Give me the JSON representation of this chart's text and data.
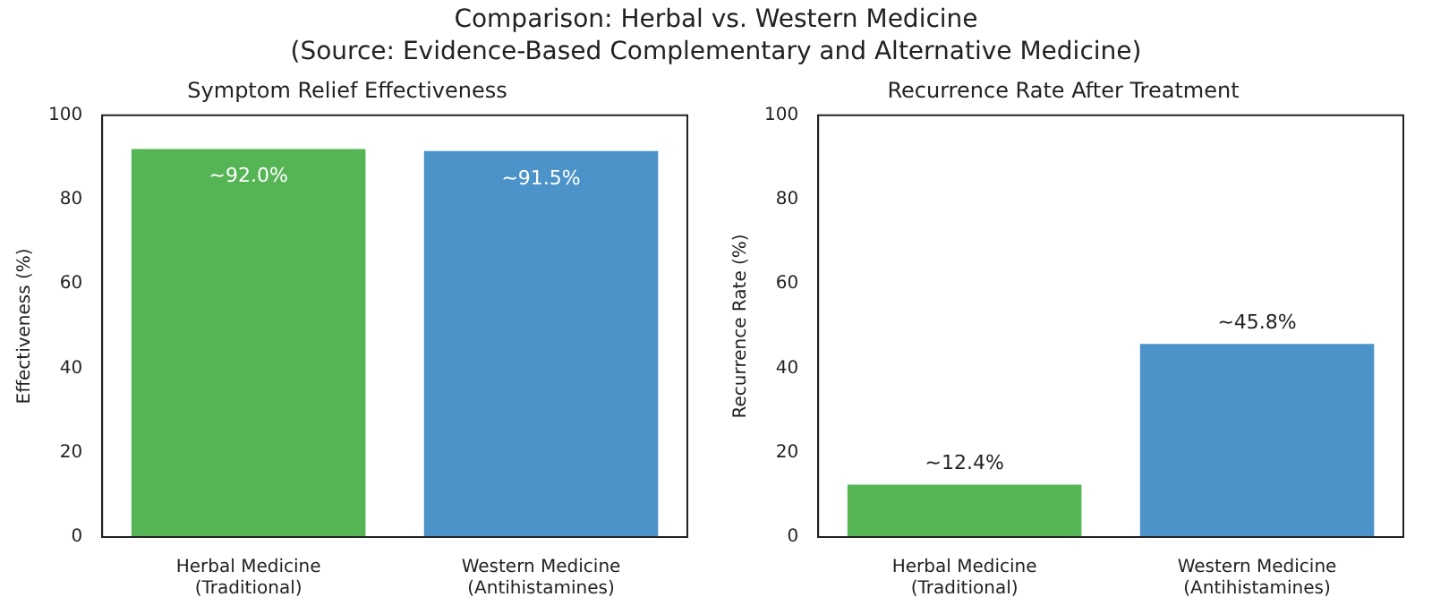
{
  "chart_data": [
    {
      "type": "bar",
      "title": "Symptom Relief Effectiveness",
      "ylabel": "Effectiveness (%)",
      "annotations": [
        "Comparison: Herbal vs. Western Medicine\n(Source: Evidence-Based Complementary and Alternative Medicine)"
      ],
      "categories": [
        "Herbal Medicine\n(Traditional)",
        "Western Medicine\n(Antihistamines)"
      ],
      "values": [
        92.0,
        91.5
      ],
      "colors": [
        "#55b555",
        "#4b93c8"
      ],
      "value_labels": [
        "~92.0%",
        "~91.5%"
      ],
      "ylim": [
        0,
        100
      ],
      "yticks": [
        0,
        20,
        40,
        60,
        80,
        100
      ],
      "grid": false,
      "legend": false
    },
    {
      "type": "bar",
      "title": "Recurrence Rate After Treatment",
      "ylabel": "Recurrence Rate (%)",
      "categories": [
        "Herbal Medicine\n(Traditional)",
        "Western Medicine\n(Antihistamines)"
      ],
      "values": [
        12.4,
        45.8
      ],
      "colors": [
        "#55b555",
        "#4b93c8"
      ],
      "value_labels": [
        "~12.4%",
        "~45.8%"
      ],
      "ylim": [
        0,
        100
      ],
      "yticks": [
        0,
        20,
        40,
        60,
        80,
        100
      ],
      "grid": false,
      "legend": false
    }
  ]
}
